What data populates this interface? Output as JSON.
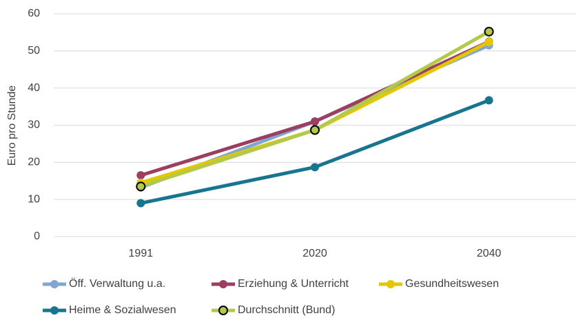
{
  "chart_data": {
    "type": "line",
    "y_label": "Euro pro Stunde",
    "categories": [
      "1991",
      "2020",
      "2040"
    ],
    "series": [
      {
        "name": "Öff. Verwaltung u.a.",
        "color": "#7fa7d1",
        "values": [
          13.2,
          31,
          51.5
        ]
      },
      {
        "name": "Erziehung & Unterricht",
        "color": "#9c3d62",
        "values": [
          16.5,
          31,
          52.5
        ]
      },
      {
        "name": "Gesundheitswesen",
        "color": "#e3c700",
        "values": [
          14.5,
          28.7,
          52.4
        ]
      },
      {
        "name": "Heime & Sozialwesen",
        "color": "#17758f",
        "values": [
          9,
          18.7,
          36.7
        ]
      },
      {
        "name": "Durchschnitt (Bund)",
        "color": "#b4c84a",
        "marker_edgecolor": "#000000",
        "values": [
          13.5,
          28.7,
          55.2
        ]
      }
    ],
    "ylim": [
      0,
      60
    ],
    "yticks": [
      0,
      10,
      20,
      30,
      40,
      50,
      60
    ],
    "grid": true
  }
}
